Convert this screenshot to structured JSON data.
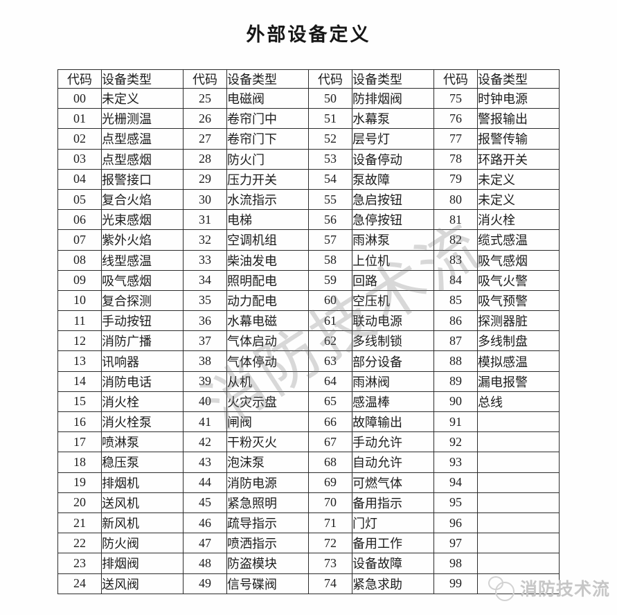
{
  "page_title": "外部设备定义",
  "table": {
    "header": {
      "code": "代码",
      "type": "设备类型"
    },
    "groups": [
      {
        "rows": [
          [
            "00",
            "未定义"
          ],
          [
            "01",
            "光栅测温"
          ],
          [
            "02",
            "点型感温"
          ],
          [
            "03",
            "点型感烟"
          ],
          [
            "04",
            "报警接口"
          ],
          [
            "05",
            "复合火焰"
          ],
          [
            "06",
            "光束感烟"
          ],
          [
            "07",
            "紫外火焰"
          ],
          [
            "08",
            "线型感温"
          ],
          [
            "09",
            "吸气感烟"
          ],
          [
            "10",
            "复合探测"
          ],
          [
            "11",
            "手动按钮"
          ],
          [
            "12",
            "消防广播"
          ],
          [
            "13",
            "讯响器"
          ],
          [
            "14",
            "消防电话"
          ],
          [
            "15",
            "消火栓"
          ],
          [
            "16",
            "消火栓泵"
          ],
          [
            "17",
            "喷淋泵"
          ],
          [
            "18",
            "稳压泵"
          ],
          [
            "19",
            "排烟机"
          ],
          [
            "20",
            "送风机"
          ],
          [
            "21",
            "新风机"
          ],
          [
            "22",
            "防火阀"
          ],
          [
            "23",
            "排烟阀"
          ],
          [
            "24",
            "送风阀"
          ]
        ]
      },
      {
        "rows": [
          [
            "25",
            "电磁阀"
          ],
          [
            "26",
            "卷帘门中"
          ],
          [
            "27",
            "卷帘门下"
          ],
          [
            "28",
            "防火门"
          ],
          [
            "29",
            "压力开关"
          ],
          [
            "30",
            "水流指示"
          ],
          [
            "31",
            "电梯"
          ],
          [
            "32",
            "空调机组"
          ],
          [
            "33",
            "柴油发电"
          ],
          [
            "34",
            "照明配电"
          ],
          [
            "35",
            "动力配电"
          ],
          [
            "36",
            "水幕电磁"
          ],
          [
            "37",
            "气体启动"
          ],
          [
            "38",
            "气体停动"
          ],
          [
            "39",
            "从机"
          ],
          [
            "40",
            "火灾示盘"
          ],
          [
            "41",
            "闸阀"
          ],
          [
            "42",
            "干粉灭火"
          ],
          [
            "43",
            "泡沫泵"
          ],
          [
            "44",
            "消防电源"
          ],
          [
            "45",
            "紧急照明"
          ],
          [
            "46",
            "疏导指示"
          ],
          [
            "47",
            "喷洒指示"
          ],
          [
            "48",
            "防盗模块"
          ],
          [
            "49",
            "信号碟阀"
          ]
        ]
      },
      {
        "rows": [
          [
            "50",
            "防排烟阀"
          ],
          [
            "51",
            "水幕泵"
          ],
          [
            "52",
            "层号灯"
          ],
          [
            "53",
            "设备停动"
          ],
          [
            "54",
            "泵故障"
          ],
          [
            "55",
            "急启按钮"
          ],
          [
            "56",
            "急停按钮"
          ],
          [
            "57",
            "雨淋泵"
          ],
          [
            "58",
            "上位机"
          ],
          [
            "59",
            "回路"
          ],
          [
            "60",
            "空压机"
          ],
          [
            "61",
            "联动电源"
          ],
          [
            "62",
            "多线制锁"
          ],
          [
            "63",
            "部分设备"
          ],
          [
            "64",
            "雨淋阀"
          ],
          [
            "65",
            "感温棒"
          ],
          [
            "66",
            "故障输出"
          ],
          [
            "67",
            "手动允许"
          ],
          [
            "68",
            "自动允许"
          ],
          [
            "69",
            "可燃气体"
          ],
          [
            "70",
            "备用指示"
          ],
          [
            "71",
            "门灯"
          ],
          [
            "72",
            "备用工作"
          ],
          [
            "73",
            "设备故障"
          ],
          [
            "74",
            "紧急求助"
          ]
        ]
      },
      {
        "rows": [
          [
            "75",
            "时钟电源"
          ],
          [
            "76",
            "警报输出"
          ],
          [
            "77",
            "报警传输"
          ],
          [
            "78",
            "环路开关"
          ],
          [
            "79",
            "未定义"
          ],
          [
            "80",
            "未定义"
          ],
          [
            "81",
            "消火栓"
          ],
          [
            "82",
            "缆式感温"
          ],
          [
            "83",
            "吸气感烟"
          ],
          [
            "84",
            "吸气火警"
          ],
          [
            "85",
            "吸气预警"
          ],
          [
            "86",
            "探测器脏"
          ],
          [
            "87",
            "多线制盘"
          ],
          [
            "88",
            "模拟感温"
          ],
          [
            "89",
            "漏电报警"
          ],
          [
            "90",
            "总线"
          ],
          [
            "91",
            ""
          ],
          [
            "92",
            ""
          ],
          [
            "93",
            ""
          ],
          [
            "94",
            ""
          ],
          [
            "95",
            ""
          ],
          [
            "96",
            ""
          ],
          [
            "97",
            ""
          ],
          [
            "98",
            ""
          ],
          [
            "99",
            ""
          ]
        ]
      }
    ]
  },
  "watermarks": {
    "diagonal_text": "消防技术流",
    "footer_text": "消防技术流"
  },
  "colors": {
    "border": "#2b2b2b",
    "text": "#1c1c1c",
    "watermark_gray": "#c6c6c6"
  }
}
